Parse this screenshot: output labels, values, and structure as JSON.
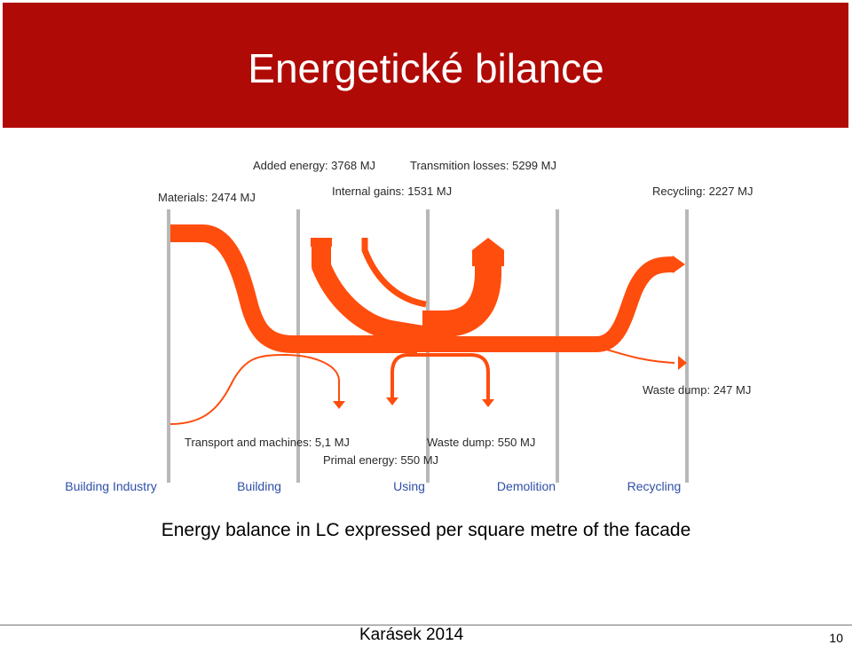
{
  "slide": {
    "title": "Energetické bilance",
    "caption": "Energy balance in LC expressed per square metre of the facade",
    "author": "Karásek 2014",
    "page_number": "10"
  },
  "colors": {
    "title_bar": "#b00a06",
    "flow": "#ff4d0d",
    "stage_label": "#2f4fa8",
    "divider": "#b8b8b8"
  },
  "diagram": {
    "stages": [
      "Building Industry",
      "Building",
      "Using",
      "Demolition",
      "Recycling"
    ],
    "flows": {
      "materials": "Materials: 2474 MJ",
      "added_energy": "Added energy: 3768 MJ",
      "internal_gains": "Internal gains: 1531 MJ",
      "transmission_losses": "Transmition losses: 5299 MJ",
      "recycling": "Recycling: 2227 MJ",
      "waste_dump_recycling": "Waste dump: 247 MJ",
      "transport_machines": "Transport and machines: 5,1 MJ",
      "waste_dump_using": "Waste dump: 550 MJ",
      "primal_energy": "Primal energy: 550 MJ"
    }
  }
}
